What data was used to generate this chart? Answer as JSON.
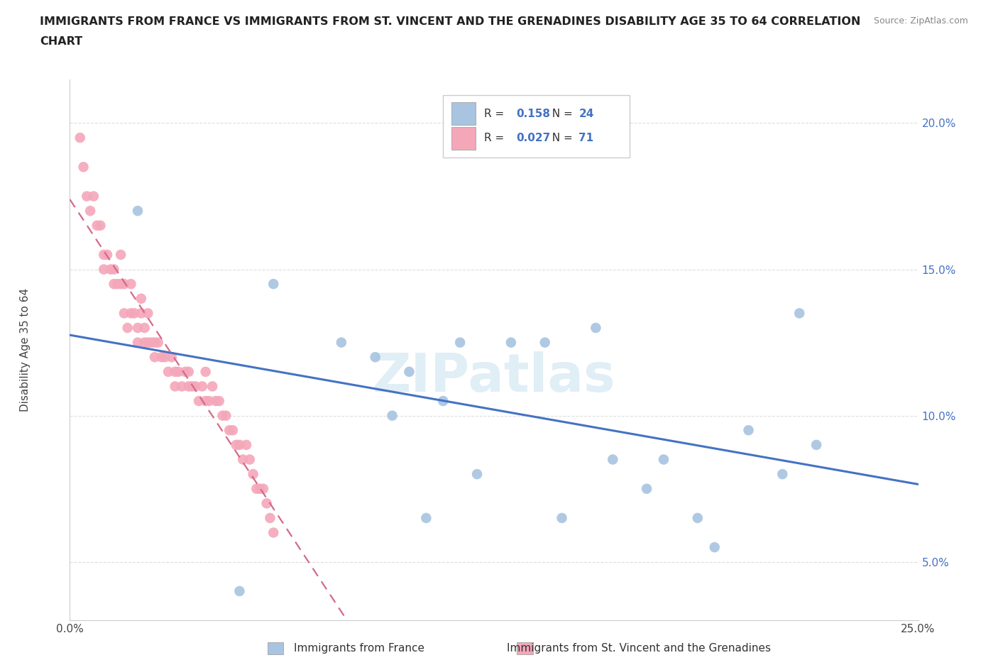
{
  "title_line1": "IMMIGRANTS FROM FRANCE VS IMMIGRANTS FROM ST. VINCENT AND THE GRENADINES DISABILITY AGE 35 TO 64 CORRELATION",
  "title_line2": "CHART",
  "source": "Source: ZipAtlas.com",
  "ylabel": "Disability Age 35 to 64",
  "xlim": [
    0.0,
    0.25
  ],
  "ylim": [
    0.03,
    0.215
  ],
  "xtick_vals": [
    0.0,
    0.05,
    0.1,
    0.15,
    0.2,
    0.25
  ],
  "xtick_labels": [
    "0.0%",
    "",
    "",
    "",
    "",
    "25.0%"
  ],
  "ytick_vals": [
    0.05,
    0.1,
    0.15,
    0.2
  ],
  "ytick_labels": [
    "5.0%",
    "10.0%",
    "15.0%",
    "20.0%"
  ],
  "legend_labels": [
    "Immigrants from France",
    "Immigrants from St. Vincent and the Grenadines"
  ],
  "R1": "0.158",
  "N1": "24",
  "R2": "0.027",
  "N2": "71",
  "color_france": "#a8c4e0",
  "color_svg": "#f4a7b9",
  "line_color_france": "#4472c4",
  "line_color_svg": "#d4698a",
  "france_x": [
    0.02,
    0.05,
    0.06,
    0.08,
    0.09,
    0.095,
    0.1,
    0.105,
    0.11,
    0.115,
    0.12,
    0.13,
    0.14,
    0.145,
    0.155,
    0.16,
    0.17,
    0.175,
    0.185,
    0.2,
    0.215,
    0.22,
    0.21,
    0.19
  ],
  "france_y": [
    0.17,
    0.04,
    0.145,
    0.125,
    0.12,
    0.1,
    0.115,
    0.065,
    0.105,
    0.125,
    0.08,
    0.125,
    0.125,
    0.065,
    0.13,
    0.085,
    0.075,
    0.085,
    0.065,
    0.095,
    0.135,
    0.09,
    0.08,
    0.055
  ],
  "svg_x": [
    0.003,
    0.004,
    0.005,
    0.006,
    0.007,
    0.008,
    0.009,
    0.01,
    0.01,
    0.011,
    0.012,
    0.013,
    0.013,
    0.014,
    0.015,
    0.015,
    0.016,
    0.016,
    0.017,
    0.018,
    0.018,
    0.019,
    0.02,
    0.02,
    0.021,
    0.021,
    0.022,
    0.022,
    0.023,
    0.023,
    0.024,
    0.025,
    0.025,
    0.026,
    0.027,
    0.028,
    0.029,
    0.03,
    0.031,
    0.031,
    0.032,
    0.033,
    0.034,
    0.035,
    0.035,
    0.036,
    0.037,
    0.038,
    0.039,
    0.04,
    0.04,
    0.041,
    0.042,
    0.043,
    0.044,
    0.045,
    0.046,
    0.047,
    0.048,
    0.049,
    0.05,
    0.051,
    0.052,
    0.053,
    0.054,
    0.055,
    0.056,
    0.057,
    0.058,
    0.059,
    0.06
  ],
  "svg_y": [
    0.195,
    0.185,
    0.175,
    0.17,
    0.175,
    0.165,
    0.165,
    0.155,
    0.15,
    0.155,
    0.15,
    0.145,
    0.15,
    0.145,
    0.145,
    0.155,
    0.135,
    0.145,
    0.13,
    0.135,
    0.145,
    0.135,
    0.125,
    0.13,
    0.135,
    0.14,
    0.13,
    0.125,
    0.125,
    0.135,
    0.125,
    0.125,
    0.12,
    0.125,
    0.12,
    0.12,
    0.115,
    0.12,
    0.115,
    0.11,
    0.115,
    0.11,
    0.115,
    0.115,
    0.11,
    0.11,
    0.11,
    0.105,
    0.11,
    0.115,
    0.105,
    0.105,
    0.11,
    0.105,
    0.105,
    0.1,
    0.1,
    0.095,
    0.095,
    0.09,
    0.09,
    0.085,
    0.09,
    0.085,
    0.08,
    0.075,
    0.075,
    0.075,
    0.07,
    0.065,
    0.06
  ]
}
